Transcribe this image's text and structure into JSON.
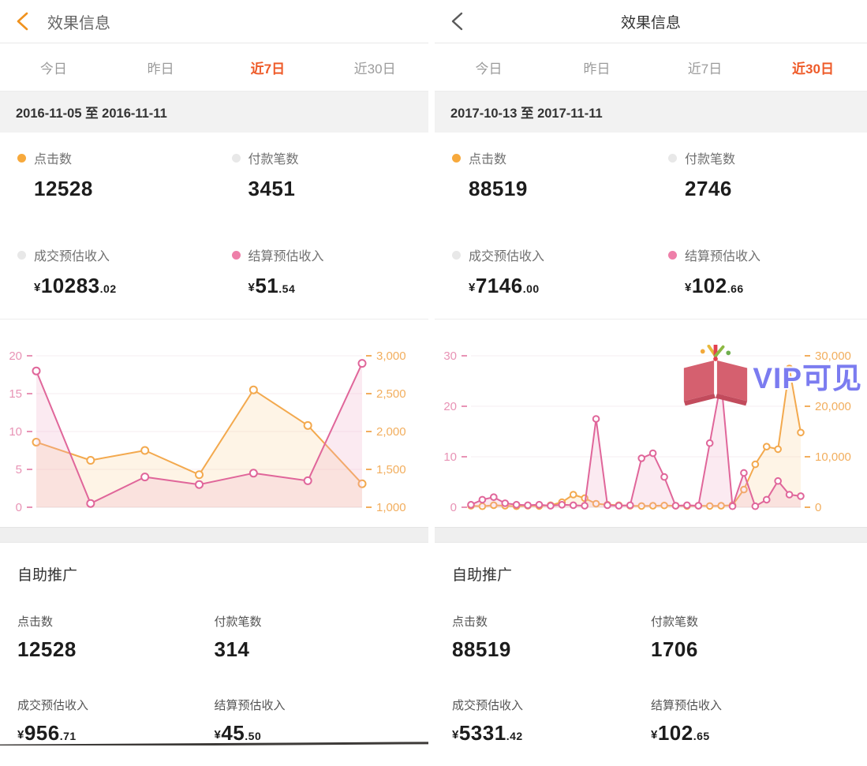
{
  "colors": {
    "accent_orange": "#ee5a28",
    "nav_chevron_orange": "#f0921e",
    "dot_orange": "#f7a93c",
    "dot_gray": "#e8e8e8",
    "dot_pink": "#ee7fa9",
    "pink_line": "#e0669a",
    "orange_line": "#f3a94e",
    "watermark_blue": "#7b7cf0"
  },
  "screens": {
    "left": {
      "header": {
        "title": "效果信息"
      },
      "tabs": [
        {
          "label": "今日",
          "active": false
        },
        {
          "label": "昨日",
          "active": false
        },
        {
          "label": "近7日",
          "active": true
        },
        {
          "label": "近30日",
          "active": false
        }
      ],
      "date_range": "2016-11-05 至 2016-11-11",
      "summary": [
        {
          "label": "点击数",
          "dot": "orange",
          "value": "12528"
        },
        {
          "label": "付款笔数",
          "dot": "gray",
          "value": "3451"
        },
        {
          "label": "成交预估收入",
          "dot": "gray",
          "currency": "¥",
          "int": "10283",
          "dec": ".02"
        },
        {
          "label": "结算预估收入",
          "dot": "pink",
          "currency": "¥",
          "int": "51",
          "dec": ".54"
        }
      ],
      "section": {
        "title": "自助推广",
        "stats": [
          {
            "label": "点击数",
            "value": "12528"
          },
          {
            "label": "付款笔数",
            "value": "314"
          },
          {
            "label": "成交预估收入",
            "currency": "¥",
            "int": "956",
            "dec": ".71"
          },
          {
            "label": "结算预估收入",
            "currency": "¥",
            "int": "45",
            "dec": ".50"
          }
        ]
      }
    },
    "right": {
      "header": {
        "title": "效果信息"
      },
      "tabs": [
        {
          "label": "今日",
          "active": false
        },
        {
          "label": "昨日",
          "active": false
        },
        {
          "label": "近7日",
          "active": false
        },
        {
          "label": "近30日",
          "active": true
        }
      ],
      "date_range": "2017-10-13 至 2017-11-11",
      "summary": [
        {
          "label": "点击数",
          "dot": "orange",
          "value": "88519"
        },
        {
          "label": "付款笔数",
          "dot": "gray",
          "value": "2746"
        },
        {
          "label": "成交预估收入",
          "dot": "gray",
          "currency": "¥",
          "int": "7146",
          "dec": ".00"
        },
        {
          "label": "结算预估收入",
          "dot": "pink",
          "currency": "¥",
          "int": "102",
          "dec": ".66"
        }
      ],
      "watermark": {
        "text": "VIP可见",
        "logo": "open-book-logo"
      },
      "section": {
        "title": "自助推广",
        "stats": [
          {
            "label": "点击数",
            "value": "88519"
          },
          {
            "label": "付款笔数",
            "value": "1706"
          },
          {
            "label": "成交预估收入",
            "currency": "¥",
            "int": "5331",
            "dec": ".42"
          },
          {
            "label": "结算预估收入",
            "currency": "¥",
            "int": "102",
            "dec": ".65"
          }
        ]
      }
    }
  },
  "chart_data": [
    {
      "type": "line",
      "screen": "left",
      "period": "近7日",
      "grid": true,
      "legend_position": "none",
      "marker_radius": 4.5,
      "left_axis": {
        "range": [
          0,
          20
        ],
        "ticks": [
          0,
          5,
          10,
          15,
          20
        ],
        "labels": [
          "0",
          "5",
          "10",
          "15",
          "20"
        ],
        "color": "#e893b5"
      },
      "right_axis": {
        "range": [
          1000,
          3000
        ],
        "ticks": [
          1000,
          1500,
          2000,
          2500,
          3000
        ],
        "labels": [
          "1,000",
          "1,500",
          "2,000",
          "2,500",
          "3,000"
        ],
        "color": "#f2ae5e"
      },
      "series": [
        {
          "name": "点击数",
          "axis": "right",
          "color": "#f3a94e",
          "fill": "rgba(250,205,140,0.22)",
          "values": [
            1860,
            1620,
            1750,
            1430,
            2550,
            2080,
            1310
          ]
        },
        {
          "name": "结算预估收入",
          "axis": "left",
          "color": "#e0669a",
          "fill": "rgba(238,170,200,0.25)",
          "values": [
            18,
            0.5,
            4,
            3,
            4.5,
            3.5,
            19
          ]
        }
      ]
    },
    {
      "type": "line",
      "screen": "right",
      "period": "近30日",
      "grid": true,
      "legend_position": "none",
      "marker_radius": 3.8,
      "left_axis": {
        "range": [
          0,
          30
        ],
        "ticks": [
          0,
          10,
          20,
          30
        ],
        "labels": [
          "0",
          "10",
          "20",
          "30"
        ],
        "color": "#e893b5"
      },
      "right_axis": {
        "range": [
          0,
          30000
        ],
        "ticks": [
          0,
          10000,
          20000,
          30000
        ],
        "labels": [
          "0",
          "10,000",
          "20,000",
          "30,000"
        ],
        "color": "#f2ae5e"
      },
      "series": [
        {
          "name": "点击数",
          "axis": "right",
          "color": "#f3a94e",
          "fill": "rgba(250,205,140,0.22)",
          "values": [
            300,
            200,
            400,
            300,
            200,
            300,
            250,
            400,
            1000,
            2500,
            1800,
            700,
            500,
            400,
            300,
            250,
            300,
            350,
            300,
            250,
            300,
            250,
            300,
            400,
            3500,
            8500,
            12000,
            11500,
            27500,
            14800
          ]
        },
        {
          "name": "结算预估收入",
          "axis": "left",
          "color": "#e0669a",
          "fill": "rgba(238,170,200,0.25)",
          "values": [
            0.5,
            1.5,
            2,
            0.8,
            0.5,
            0.4,
            0.5,
            0.3,
            0.5,
            0.4,
            0.3,
            17.5,
            0.4,
            0.3,
            0.4,
            9.7,
            10.7,
            6,
            0.3,
            0.4,
            0.3,
            12.7,
            25,
            0.2,
            6.8,
            0.2,
            1.5,
            5.2,
            2.5,
            2.2
          ]
        }
      ]
    }
  ]
}
